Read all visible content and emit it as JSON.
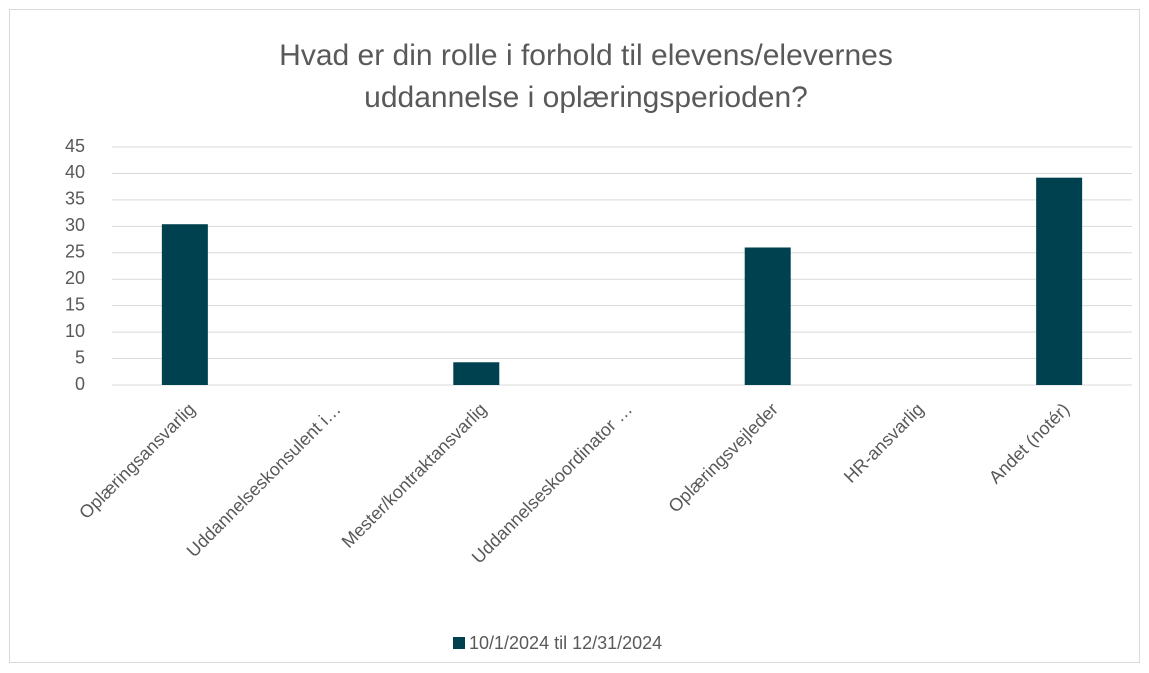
{
  "chart_data": {
    "type": "bar",
    "title": [
      "Hvad er din rolle i forhold til elevens/elevernes",
      "uddannelse i oplæringsperioden?"
    ],
    "categories": [
      "Oplæringsansvarlig",
      "Uddannelseskonsulent i…",
      "Mester/kontraktansvarlig",
      "Uddannelseskoordinator …",
      "Oplæringsvejleder",
      "HR-ansvarlig",
      "Andet (notér)"
    ],
    "series": [
      {
        "name": "10/1/2024 til 12/31/2024",
        "color": "#00414f",
        "values": [
          30.4,
          0,
          4.3,
          0,
          26,
          0,
          39.2
        ]
      }
    ],
    "ylim": [
      0,
      45
    ],
    "yticks": [
      0,
      5,
      10,
      15,
      20,
      25,
      30,
      35,
      40,
      45
    ],
    "grid": true,
    "legend": "bottom"
  }
}
